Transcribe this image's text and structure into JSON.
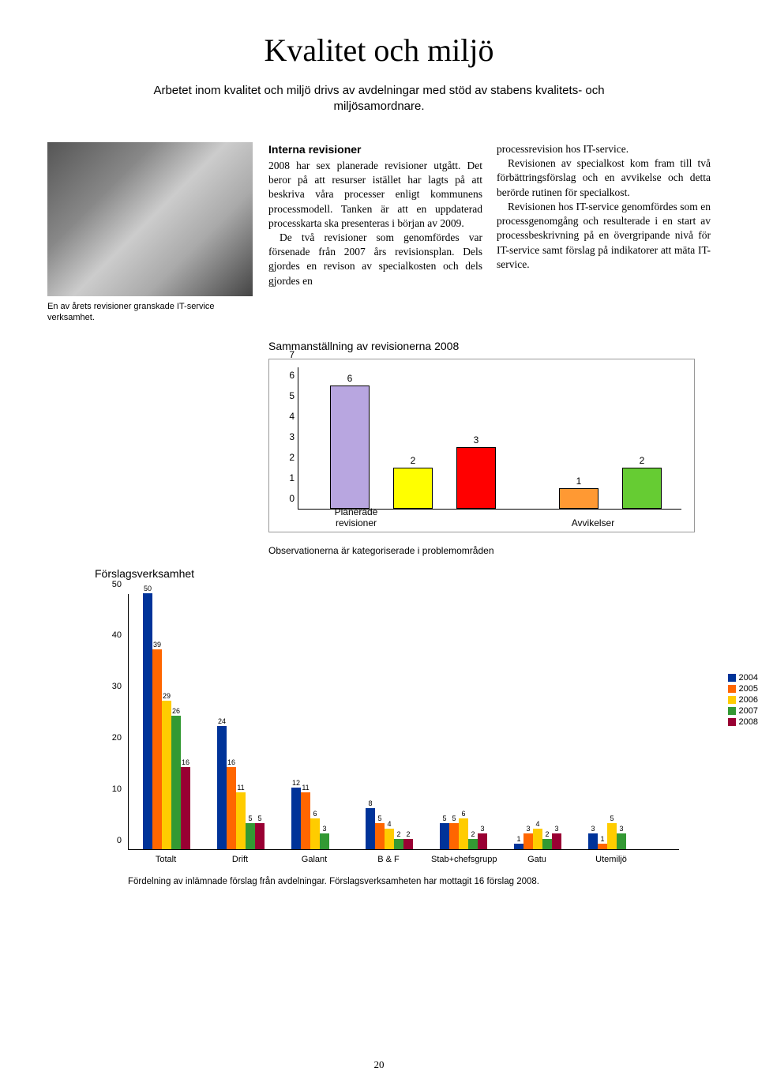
{
  "page_title": "Kvalitet och miljö",
  "subtitle": "Arbetet inom kvalitet och miljö drivs av avdelningar med stöd av stabens kvalitets- och miljösamordnare.",
  "photo_caption": "En av årets revisioner granskade IT-service verksamhet.",
  "body": {
    "heading": "Interna revisioner",
    "p1": "2008 har sex planerade revisioner utgått. Det beror på att resurser istället har lagts på att beskriva våra processer enligt kommunens processmodell. Tanken är att en uppdaterad processkarta ska presenteras i början av 2009.",
    "p2": "De två revisioner som genomfördes var försenade från 2007 års revisionsplan. Dels gjordes en revison av specialkosten och dels gjordes en",
    "p3": "processrevision hos IT-service.",
    "p4": "Revisionen av specialkost kom fram till två förbättringsförslag och en avvikelse och detta berörde rutinen för specialkost.",
    "p5": "Revisionen hos IT-service genomfördes som en processgenomgång och resulterade i en start av processbeskrivning på en övergripande nivå för IT-service samt förslag på indikatorer att mäta IT-service."
  },
  "chart1": {
    "title": "Sammanställning av revisionerna 2008",
    "ylim": [
      0,
      7
    ],
    "ytick_step": 1,
    "categories": [
      "Planerade revisioner",
      "Avvikelser"
    ],
    "bars": [
      {
        "value": 6,
        "color": "#b8a6e0"
      },
      {
        "value": 2,
        "color": "#ffff00"
      },
      {
        "value": 3,
        "color": "#ff0000"
      },
      {
        "value": 1,
        "color": "#ff9933"
      },
      {
        "value": 2,
        "color": "#66cc33"
      }
    ],
    "border_color": "#999999"
  },
  "obs_text": "Observationerna är kategoriserade i problemområden",
  "chart2": {
    "title": "Förslagsverksamhet",
    "ylim": [
      0,
      50
    ],
    "ytick_step": 10,
    "legend": [
      {
        "label": "2004",
        "color": "#003399"
      },
      {
        "label": "2005",
        "color": "#ff6600"
      },
      {
        "label": "2006",
        "color": "#ffcc00"
      },
      {
        "label": "2007",
        "color": "#339933"
      },
      {
        "label": "2008",
        "color": "#990033"
      }
    ],
    "groups": [
      {
        "label": "Totalt",
        "values": [
          50,
          39,
          29,
          26,
          16
        ]
      },
      {
        "label": "Drift",
        "values": [
          24,
          16,
          11,
          5,
          5
        ]
      },
      {
        "label": "Galant",
        "values": [
          12,
          11,
          6,
          3,
          null
        ]
      },
      {
        "label": "B & F",
        "values": [
          8,
          5,
          4,
          2,
          2
        ]
      },
      {
        "label": "Stab+chefsgrupp",
        "values": [
          5,
          5,
          6,
          2,
          3
        ]
      },
      {
        "label": "Gatu",
        "values": [
          1,
          3,
          4,
          2,
          3
        ]
      },
      {
        "label": "Utemiljö",
        "values": [
          3,
          1,
          5,
          3,
          null
        ]
      }
    ],
    "caption": "Fördelning av inlämnade förslag från avdelningar. Förslagsverksamheten har mottagit 16 förslag 2008."
  },
  "page_number": "20"
}
